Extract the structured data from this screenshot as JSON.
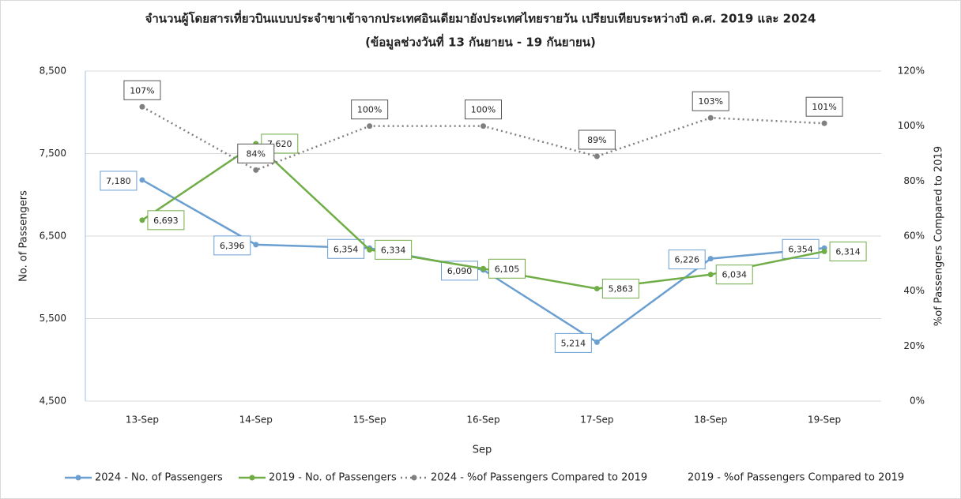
{
  "chart_data": {
    "type": "line",
    "title": "จำนวนผู้โดยสารเที่ยวบินแบบประจำขาเข้าจากประเทศอินเดียมายังประเทศไทยรายวัน เปรียบเทียบระหว่างปี ค.ศ. 2019 และ 2024",
    "subtitle": "(ข้อมูลช่วงวันที่ 13 กันยายน - 19 กันยายน)",
    "x_label": "Sep",
    "y_label": "No. of Passengers",
    "y2_label": "%of Passengers Compared to 2019",
    "categories": [
      "13-Sep",
      "14-Sep",
      "15-Sep",
      "16-Sep",
      "17-Sep",
      "18-Sep",
      "19-Sep"
    ],
    "ylim": [
      4500,
      8500
    ],
    "yticks": [
      {
        "value": 4500,
        "label": "4,500"
      },
      {
        "value": 5500,
        "label": "5,500"
      },
      {
        "value": 6500,
        "label": "6,500"
      },
      {
        "value": 7500,
        "label": "7,500"
      },
      {
        "value": 8500,
        "label": "8,500"
      }
    ],
    "y2lim": [
      0,
      120
    ],
    "y2ticks": [
      {
        "value": 0,
        "label": "0%"
      },
      {
        "value": 20,
        "label": "20%"
      },
      {
        "value": 40,
        "label": "40%"
      },
      {
        "value": 60,
        "label": "60%"
      },
      {
        "value": 80,
        "label": "80%"
      },
      {
        "value": 100,
        "label": "100%"
      },
      {
        "value": 120,
        "label": "120%"
      }
    ],
    "grid": true,
    "legend": "bottom",
    "series": [
      {
        "name": "2024 - No. of Passengers",
        "color": "#6a9fd0",
        "style": "solid",
        "values": [
          7180,
          6396,
          6354,
          6090,
          5214,
          6226,
          6354
        ],
        "value_labels": [
          "7,180",
          "6,396",
          "6,354",
          "6,090",
          "5,214",
          "6,226",
          "6,354"
        ]
      },
      {
        "name": "2019 - No. of Passengers",
        "color": "#70ad47",
        "style": "solid",
        "values": [
          6693,
          7620,
          6334,
          6105,
          5863,
          6034,
          6314
        ],
        "value_labels": [
          "6,693",
          "7,620",
          "6,334",
          "6,105",
          "5,863",
          "6,034",
          "6,314"
        ]
      },
      {
        "name": "2024 - %of Passengers Compared to 2019",
        "color": "#808080",
        "style": "dotted",
        "axis": "y2",
        "values": [
          107,
          84,
          100,
          100,
          89,
          103,
          101
        ],
        "value_labels": [
          "107%",
          "84%",
          "100%",
          "100%",
          "89%",
          "103%",
          "101%"
        ]
      },
      {
        "name": "2019 - %of Passengers Compared to 2019",
        "axis": "y2",
        "values": [
          null,
          null,
          null,
          null,
          null,
          null,
          null
        ]
      }
    ]
  }
}
